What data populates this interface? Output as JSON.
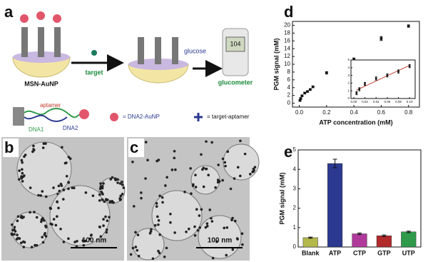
{
  "diagram": {
    "panel": "a",
    "particle": "MSN-AuNP",
    "arrow_label": "target",
    "product": "glucose",
    "device": "glucometer",
    "meter_reading": "104",
    "strand_labels": [
      "DNA1",
      "aptamer",
      "DNA2"
    ],
    "legend": [
      "= DNA2-AuNP",
      "= target-aptamer"
    ]
  },
  "images": [
    {
      "panel": "b",
      "scale_bar": "100 nm"
    },
    {
      "panel": "c",
      "scale_bar": "100 nm"
    }
  ],
  "chart_data": [
    {
      "type": "scatter",
      "panel": "d",
      "xlabel": "ATP concentration (mM)",
      "ylabel": "PGM signal (mM)",
      "color": "#111111",
      "x": [
        0.005,
        0.01,
        0.02,
        0.04,
        0.06,
        0.08,
        0.1,
        0.2,
        0.4,
        0.6,
        0.8
      ],
      "values": [
        0.7,
        1.2,
        1.9,
        2.6,
        3.0,
        3.5,
        4.2,
        7.8,
        11.3,
        16.6,
        19.8
      ],
      "errors": [
        0.2,
        0.2,
        0.2,
        0.2,
        0.2,
        0.2,
        0.2,
        0.3,
        0.3,
        0.5,
        0.3
      ],
      "xlim": [
        -0.05,
        0.88
      ],
      "ylim": [
        -1,
        21
      ],
      "xticks": [
        {
          "value": 0,
          "label": "0.0"
        },
        0.2,
        0.4,
        0.6,
        0.8
      ],
      "yticks": [
        0,
        2,
        4,
        6,
        8,
        10,
        12,
        14,
        16,
        18,
        20
      ],
      "inset": {
        "xlim": [
          -0.005,
          0.11
        ],
        "ylim": [
          0,
          5
        ],
        "fit_color": "#c0392b",
        "xticks": [
          {
            "value": 0,
            "label": "0.00"
          },
          {
            "value": 0.02,
            "label": "0.02"
          },
          {
            "value": 0.04,
            "label": "0.04"
          },
          {
            "value": 0.06,
            "label": "0.06"
          },
          {
            "value": 0.08,
            "label": "0.08"
          },
          {
            "value": 0.1,
            "label": "0.10"
          }
        ],
        "yticks": [
          0,
          1,
          2,
          3,
          4,
          5
        ]
      }
    },
    {
      "type": "bar",
      "panel": "e",
      "ylabel": "PGM signal (mM)",
      "categories": [
        "Blank",
        "ATP",
        "CTP",
        "GTP",
        "UTP"
      ],
      "values": [
        0.48,
        4.3,
        0.68,
        0.58,
        0.78
      ],
      "errors": [
        0.03,
        0.22,
        0.04,
        0.04,
        0.04
      ],
      "colors": [
        "#b5b84a",
        "#2b3990",
        "#b03a9c",
        "#b22a2a",
        "#2e9a4a"
      ],
      "ylim": [
        0,
        5
      ],
      "yticks": [
        0,
        1,
        2,
        3,
        4,
        5
      ]
    }
  ]
}
